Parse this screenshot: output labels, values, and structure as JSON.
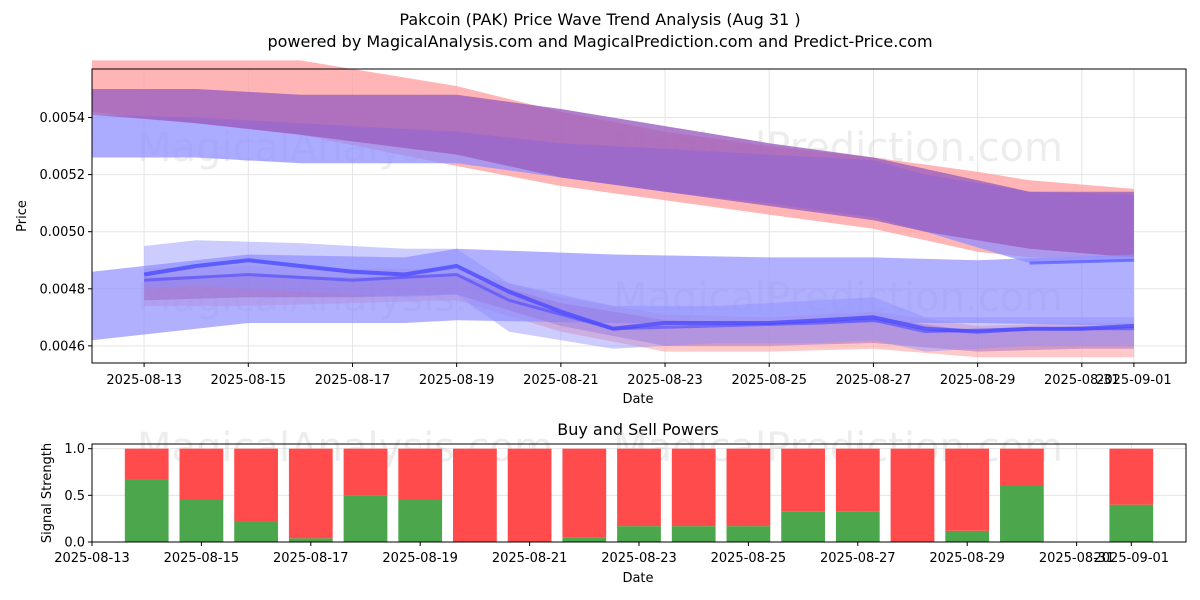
{
  "title_line1": "Pakcoin (PAK) Price Wave Trend Analysis (Aug 31 )",
  "title_line2": "powered by MagicalAnalysis.com and MagicalPrediction.com and Predict-Price.com",
  "watermarks": [
    "MagicalAnalysis.com",
    "MagicalPrediction.com"
  ],
  "colors": {
    "red_band": "#ff9c9c",
    "purple_band": "#9b5fc0",
    "blue_band": "#8f8fff",
    "blue_line": "#4b4bff",
    "buy": "#4ca64c",
    "sell": "#ff4b4b",
    "grid": "#e5e5e5"
  },
  "chart_data": [
    {
      "type": "area",
      "title": "",
      "xlabel": "Date",
      "ylabel": "Price",
      "xlim": [
        "2025-08-12",
        "2025-09-02"
      ],
      "ylim": [
        0.00454,
        0.00557
      ],
      "x_ticks": [
        "2025-08-13",
        "2025-08-15",
        "2025-08-17",
        "2025-08-19",
        "2025-08-21",
        "2025-08-23",
        "2025-08-25",
        "2025-08-27",
        "2025-08-29",
        "2025-08-31",
        "2025-09-01"
      ],
      "y_ticks": [
        "0.0046",
        "0.0048",
        "0.0050",
        "0.0052",
        "0.0054"
      ],
      "grid": true,
      "bands": [
        {
          "name": "upper red band",
          "x": [
            "2025-08-12",
            "2025-08-12",
            "2025-08-14",
            "2025-08-16",
            "2025-08-19",
            "2025-08-21",
            "2025-08-23",
            "2025-08-25",
            "2025-08-27",
            "2025-08-29",
            "2025-08-30",
            "2025-09-01"
          ],
          "upper": [
            0.00542,
            0.0056,
            0.0056,
            0.0056,
            0.00551,
            0.00542,
            0.00535,
            0.0053,
            0.00526,
            0.00521,
            0.00518,
            0.00515
          ],
          "lower": [
            0.00542,
            0.00542,
            0.00538,
            0.00534,
            0.00523,
            0.00516,
            0.00511,
            0.00506,
            0.00501,
            0.00493,
            0.00491,
            0.00491
          ]
        },
        {
          "name": "upper blue band",
          "x": [
            "2025-08-12",
            "2025-08-14",
            "2025-08-16",
            "2025-08-19",
            "2025-08-21",
            "2025-08-23",
            "2025-08-25",
            "2025-08-27",
            "2025-08-28",
            "2025-08-30",
            "2025-09-01"
          ],
          "upper": [
            0.00541,
            0.0054,
            0.00538,
            0.00535,
            0.00531,
            0.00529,
            0.00527,
            0.00525,
            0.0052,
            0.00514,
            0.00513
          ],
          "lower": [
            0.00526,
            0.00526,
            0.00524,
            0.00524,
            0.00519,
            0.00514,
            0.0051,
            0.00505,
            0.005,
            0.00489,
            0.0049
          ]
        },
        {
          "name": "upper purple band",
          "x": [
            "2025-08-12",
            "2025-08-14",
            "2025-08-16",
            "2025-08-19",
            "2025-08-21",
            "2025-08-23",
            "2025-08-25",
            "2025-08-27",
            "2025-08-28",
            "2025-08-30",
            "2025-09-01"
          ],
          "upper": [
            0.0055,
            0.0055,
            0.00548,
            0.00548,
            0.00543,
            0.00537,
            0.00531,
            0.00526,
            0.00522,
            0.00514,
            0.00514
          ],
          "lower": [
            0.00541,
            0.00538,
            0.00534,
            0.00527,
            0.00519,
            0.00514,
            0.00509,
            0.00504,
            0.005,
            0.00494,
            0.00491
          ]
        },
        {
          "name": "lower red band",
          "x": [
            "2025-08-13",
            "2025-08-15",
            "2025-08-17",
            "2025-08-19",
            "2025-08-21",
            "2025-08-23",
            "2025-08-25",
            "2025-08-27",
            "2025-08-29",
            "2025-08-31",
            "2025-09-01"
          ],
          "upper": [
            0.00487,
            0.00488,
            0.00487,
            0.00487,
            0.00477,
            0.00471,
            0.0047,
            0.00472,
            0.00467,
            0.00468,
            0.00468
          ],
          "lower": [
            0.00474,
            0.00474,
            0.00475,
            0.00476,
            0.00465,
            0.00458,
            0.00458,
            0.00459,
            0.00456,
            0.00456,
            0.00456
          ]
        },
        {
          "name": "wide blue band",
          "x": [
            "2025-08-12",
            "2025-08-15",
            "2025-08-18",
            "2025-08-19",
            "2025-08-22",
            "2025-08-25",
            "2025-08-27",
            "2025-08-29",
            "2025-09-01"
          ],
          "upper": [
            0.00486,
            0.00492,
            0.00491,
            0.00494,
            0.00492,
            0.00491,
            0.00491,
            0.0049,
            0.00492
          ],
          "lower": [
            0.00462,
            0.00468,
            0.00468,
            0.00469,
            0.00468,
            0.00468,
            0.00468,
            0.00468,
            0.00467
          ]
        },
        {
          "name": "lower purple band",
          "x": [
            "2025-08-13",
            "2025-08-15",
            "2025-08-17",
            "2025-08-19",
            "2025-08-21",
            "2025-08-23",
            "2025-08-25",
            "2025-08-27",
            "2025-08-29",
            "2025-08-31",
            "2025-09-01"
          ],
          "upper": [
            0.00484,
            0.00485,
            0.00484,
            0.00485,
            0.00475,
            0.00469,
            0.00468,
            0.0047,
            0.00465,
            0.00467,
            0.00467
          ],
          "lower": [
            0.00476,
            0.00477,
            0.00477,
            0.00478,
            0.00467,
            0.0046,
            0.0046,
            0.00461,
            0.00458,
            0.00459,
            0.00459
          ]
        },
        {
          "name": "lower blue band",
          "x": [
            "2025-08-13",
            "2025-08-14",
            "2025-08-16",
            "2025-08-18",
            "2025-08-19",
            "2025-08-20",
            "2025-08-22",
            "2025-08-24",
            "2025-08-26",
            "2025-08-27",
            "2025-08-28",
            "2025-08-30",
            "2025-09-01"
          ],
          "upper": [
            0.00495,
            0.00497,
            0.00496,
            0.00494,
            0.00494,
            0.00482,
            0.00474,
            0.00474,
            0.00476,
            0.00477,
            0.0047,
            0.0047,
            0.0047
          ],
          "lower": [
            0.0048,
            0.00481,
            0.00479,
            0.00477,
            0.00478,
            0.00465,
            0.00459,
            0.00461,
            0.00461,
            0.00462,
            0.00458,
            0.0046,
            0.0046
          ]
        }
      ],
      "lines": [
        {
          "name": "main wave",
          "x": [
            "2025-08-13",
            "2025-08-14",
            "2025-08-15",
            "2025-08-16",
            "2025-08-17",
            "2025-08-18",
            "2025-08-19",
            "2025-08-20",
            "2025-08-21",
            "2025-08-22",
            "2025-08-23",
            "2025-08-24",
            "2025-08-25",
            "2025-08-26",
            "2025-08-27",
            "2025-08-28",
            "2025-08-29",
            "2025-08-30",
            "2025-08-31",
            "2025-09-01"
          ],
          "y": [
            0.00485,
            0.00488,
            0.0049,
            0.00488,
            0.00486,
            0.00485,
            0.00488,
            0.00479,
            0.00472,
            0.00466,
            0.00468,
            0.00468,
            0.00468,
            0.00469,
            0.0047,
            0.00466,
            0.00465,
            0.00466,
            0.00466,
            0.00467
          ]
        },
        {
          "name": "secondary wave",
          "x": [
            "2025-08-13",
            "2025-08-15",
            "2025-08-17",
            "2025-08-19",
            "2025-08-20",
            "2025-08-22",
            "2025-08-24",
            "2025-08-26",
            "2025-08-27",
            "2025-08-28",
            "2025-08-30",
            "2025-09-01"
          ],
          "y": [
            0.00483,
            0.00485,
            0.00483,
            0.00485,
            0.00476,
            0.00466,
            0.00467,
            0.00468,
            0.00469,
            0.00465,
            0.00466,
            0.00466
          ]
        },
        {
          "name": "tail line",
          "x": [
            "2025-08-30",
            "2025-09-01"
          ],
          "y": [
            0.00489,
            0.0049
          ]
        }
      ]
    },
    {
      "type": "bar",
      "title": "Buy and Sell Powers",
      "xlabel": "Date",
      "ylabel": "Signal Strength",
      "xlim": [
        "2025-08-13",
        "2025-09-02"
      ],
      "ylim": [
        0,
        1.05
      ],
      "x_ticks": [
        "2025-08-13",
        "2025-08-15",
        "2025-08-17",
        "2025-08-19",
        "2025-08-21",
        "2025-08-23",
        "2025-08-25",
        "2025-08-27",
        "2025-08-29",
        "2025-08-31",
        "2025-09-01"
      ],
      "y_ticks": [
        "0.0",
        "0.5",
        "1.0"
      ],
      "grid": true,
      "categories": [
        "2025-08-14",
        "2025-08-15",
        "2025-08-16",
        "2025-08-17",
        "2025-08-18",
        "2025-08-19",
        "2025-08-20",
        "2025-08-21",
        "2025-08-22",
        "2025-08-23",
        "2025-08-24",
        "2025-08-25",
        "2025-08-26",
        "2025-08-27",
        "2025-08-28",
        "2025-08-29",
        "2025-08-30",
        "2025-09-01"
      ],
      "series": [
        {
          "name": "Buy",
          "values": [
            0.67,
            0.45,
            0.22,
            0.04,
            0.5,
            0.45,
            0.0,
            0.0,
            0.05,
            0.17,
            0.17,
            0.17,
            0.33,
            0.33,
            0.0,
            0.12,
            0.6,
            0.4
          ]
        },
        {
          "name": "Sell",
          "values": [
            0.33,
            0.55,
            0.78,
            0.96,
            0.5,
            0.55,
            1.0,
            1.0,
            0.95,
            0.83,
            0.83,
            0.83,
            0.67,
            0.67,
            1.0,
            0.88,
            0.4,
            0.6
          ]
        }
      ]
    }
  ]
}
